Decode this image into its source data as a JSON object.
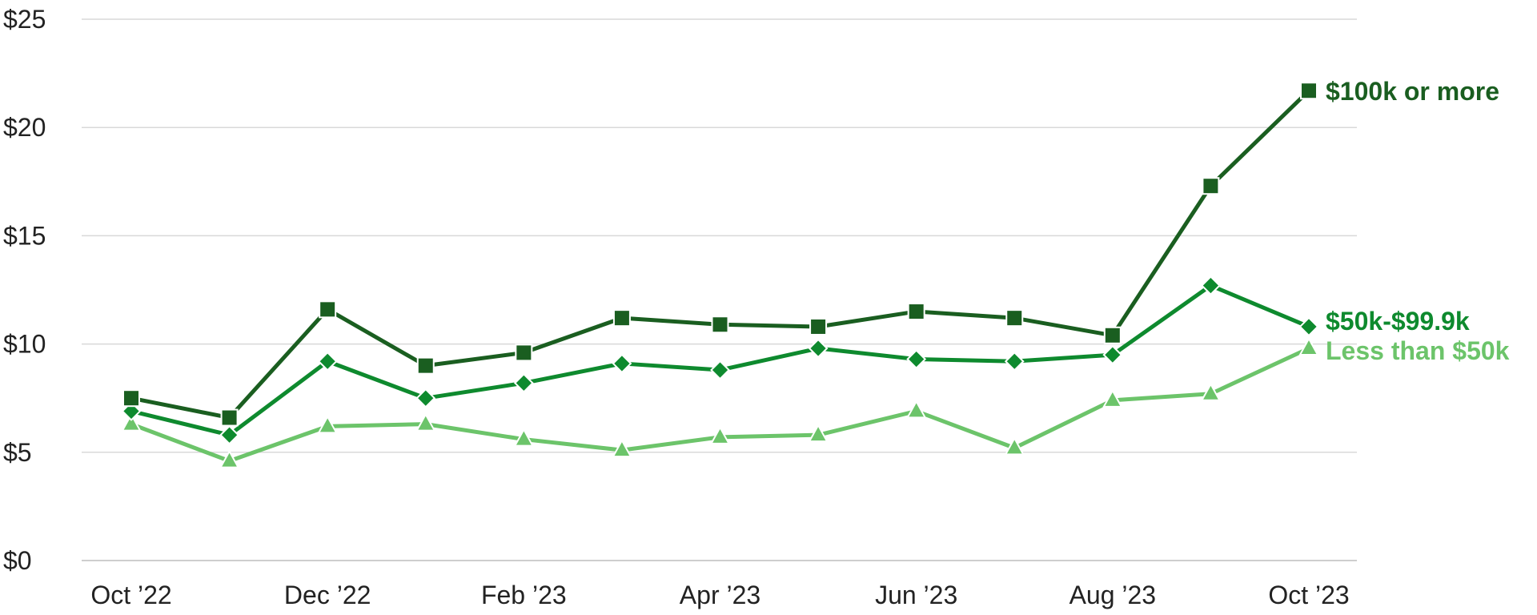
{
  "chart_data": {
    "type": "line",
    "x": [
      "Oct ’22",
      "Nov ’22",
      "Dec ’22",
      "Jan ’23",
      "Feb ’23",
      "Mar ’23",
      "Apr ’23",
      "May ’23",
      "Jun ’23",
      "Jul ’23",
      "Aug ’23",
      "Sep ’23",
      "Oct ’23"
    ],
    "xtick_labels": [
      "Oct ’22",
      "Dec ’22",
      "Feb ’23",
      "Apr ’23",
      "Jun ’23",
      "Aug ’23",
      "Oct ’23"
    ],
    "ylim": [
      0,
      25
    ],
    "yticks": [
      0,
      5,
      10,
      15,
      20,
      25
    ],
    "ytick_labels": [
      "$0",
      "$5",
      "$10",
      "$15",
      "$20",
      "$25"
    ],
    "grid": true,
    "legend": "inline labels at right end of lines",
    "series": [
      {
        "name": "$100k or more",
        "color": "#1a5e20",
        "marker": "square",
        "values": [
          7.5,
          6.6,
          11.6,
          9.0,
          9.6,
          11.2,
          10.9,
          10.8,
          11.5,
          11.2,
          10.4,
          17.3,
          21.7
        ]
      },
      {
        "name": "$50k-$99.9k",
        "color": "#0e8a2e",
        "marker": "diamond",
        "values": [
          6.9,
          5.8,
          9.2,
          7.5,
          8.2,
          9.1,
          8.8,
          9.8,
          9.3,
          9.2,
          9.5,
          12.7,
          10.8
        ]
      },
      {
        "name": "Less than $50k",
        "color": "#6cc46a",
        "marker": "triangle",
        "values": [
          6.3,
          4.6,
          6.2,
          6.3,
          5.6,
          5.1,
          5.7,
          5.8,
          6.9,
          5.2,
          7.4,
          7.7,
          9.8
        ]
      }
    ]
  }
}
